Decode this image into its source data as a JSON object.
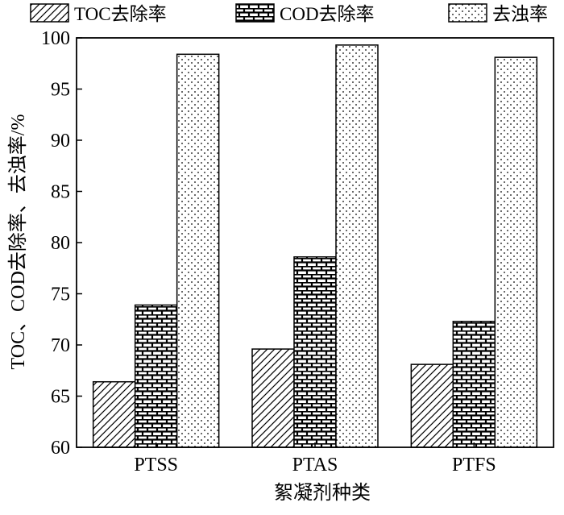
{
  "chart_data": {
    "type": "bar",
    "categories": [
      "PTSS",
      "PTAS",
      "PTFS"
    ],
    "series": [
      {
        "name": "TOC去除率",
        "values": [
          66.4,
          69.6,
          68.1
        ],
        "pattern": "hatch"
      },
      {
        "name": "COD去除率",
        "values": [
          73.9,
          78.6,
          72.3
        ],
        "pattern": "brick"
      },
      {
        "name": "去浊率",
        "values": [
          98.4,
          99.3,
          98.1
        ],
        "pattern": "dots"
      }
    ],
    "xlabel": "絮凝剂种类",
    "ylabel": "TOC、COD去除率、去浊率/%",
    "ylim": [
      60,
      100
    ],
    "yticks": [
      "60",
      "65",
      "70",
      "75",
      "80",
      "85",
      "90",
      "95",
      "100"
    ],
    "grid": false,
    "legend": "top"
  }
}
